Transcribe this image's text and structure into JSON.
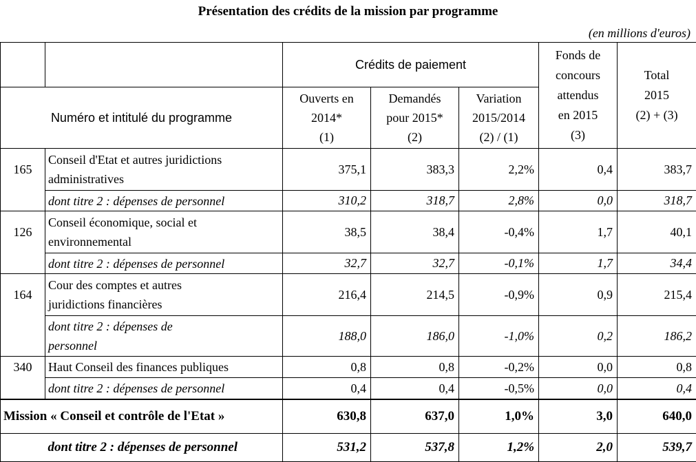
{
  "title": "Présentation des crédits de la mission par programme",
  "unit": "(en millions d'euros)",
  "headers": {
    "credits_paiement": "Crédits de paiement",
    "fonds": "Fonds de concours attendus en 2015 (3)",
    "fonds_lines": [
      "Fonds de",
      "concours",
      "attendus",
      "en 2015",
      "(3)"
    ],
    "total_top": "Total",
    "total_lines": [
      "2015",
      "(2) + (3)"
    ],
    "programme": "Numéro et intitulé du programme",
    "ouverts_lines": [
      "Ouverts en",
      "2014*",
      "(1)"
    ],
    "demandes_lines": [
      "Demandés",
      "pour 2015*",
      "(2)"
    ],
    "variation_lines": [
      "Variation",
      "2015/2014",
      "(2) / (1)"
    ]
  },
  "rows": [
    {
      "code": "165",
      "label_lines": [
        "Conseil d'Etat et autres juridictions",
        "administratives"
      ],
      "ouverts": "375,1",
      "demandes": "383,3",
      "variation": "2,2%",
      "fonds": "0,4",
      "total": "383,7"
    },
    {
      "code": "",
      "label_lines": [
        "dont titre 2 : dépenses de personnel"
      ],
      "ouverts": "310,2",
      "demandes": "318,7",
      "variation": "2,8%",
      "fonds": "0,0",
      "total": "318,7"
    },
    {
      "code": "126",
      "label_lines": [
        "Conseil économique, social et",
        "environnemental"
      ],
      "ouverts": "38,5",
      "demandes": "38,4",
      "variation": "-0,4%",
      "fonds": "1,7",
      "total": "40,1"
    },
    {
      "code": "",
      "label_lines": [
        "dont titre 2 : dépenses de personnel"
      ],
      "ouverts": "32,7",
      "demandes": "32,7",
      "variation": "-0,1%",
      "fonds": "1,7",
      "total": "34,4"
    },
    {
      "code": "164",
      "label_lines": [
        "Cour des comptes et autres",
        "juridictions financières"
      ],
      "ouverts": "216,4",
      "demandes": "214,5",
      "variation": "-0,9%",
      "fonds": "0,9",
      "total": "215,4"
    },
    {
      "code": "",
      "label_lines": [
        "dont titre 2 : dépenses de",
        "personnel"
      ],
      "ouverts": "188,0",
      "demandes": "186,0",
      "variation": "-1,0%",
      "fonds": "0,2",
      "total": "186,2"
    },
    {
      "code": "340",
      "label_lines": [
        "Haut Conseil des finances publiques"
      ],
      "ouverts": "0,8",
      "demandes": "0,8",
      "variation": "-0,2%",
      "fonds": "0,0",
      "total": "0,8"
    },
    {
      "code": "",
      "label_lines": [
        "dont titre 2 : dépenses de personnel"
      ],
      "ouverts": "0,4",
      "demandes": "0,4",
      "variation": "-0,5%",
      "fonds": "0,0",
      "total": "0,4"
    }
  ],
  "mission": {
    "label": "Mission « Conseil et contrôle de l'Etat »",
    "ouverts": "630,8",
    "demandes": "637,0",
    "variation": "1,0%",
    "fonds": "3,0",
    "total": "640,0"
  },
  "mission_t2": {
    "label": "dont titre 2 : dépenses de personnel",
    "ouverts": "531,2",
    "demandes": "537,8",
    "variation": "1,2%",
    "fonds": "2,0",
    "total": "539,7"
  }
}
